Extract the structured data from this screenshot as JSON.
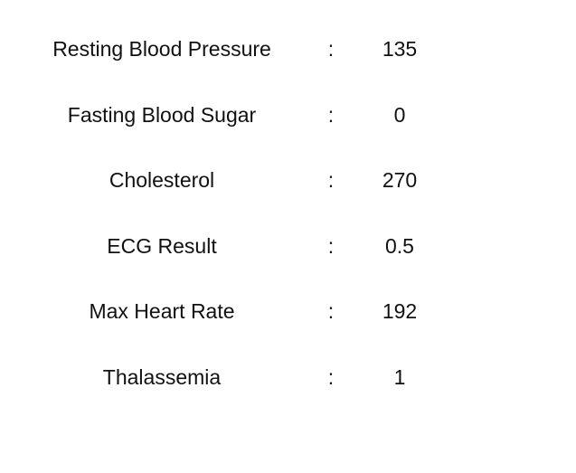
{
  "rows": [
    {
      "label": "Resting Blood Pressure",
      "separator": ":",
      "value": "135"
    },
    {
      "label": "Fasting Blood Sugar",
      "separator": ":",
      "value": "0"
    },
    {
      "label": "Cholesterol",
      "separator": ":",
      "value": "270"
    },
    {
      "label": "ECG Result",
      "separator": ":",
      "value": "0.5"
    },
    {
      "label": "Max Heart Rate",
      "separator": ":",
      "value": "192"
    },
    {
      "label": "Thalassemia",
      "separator": ":",
      "value": "1"
    }
  ]
}
